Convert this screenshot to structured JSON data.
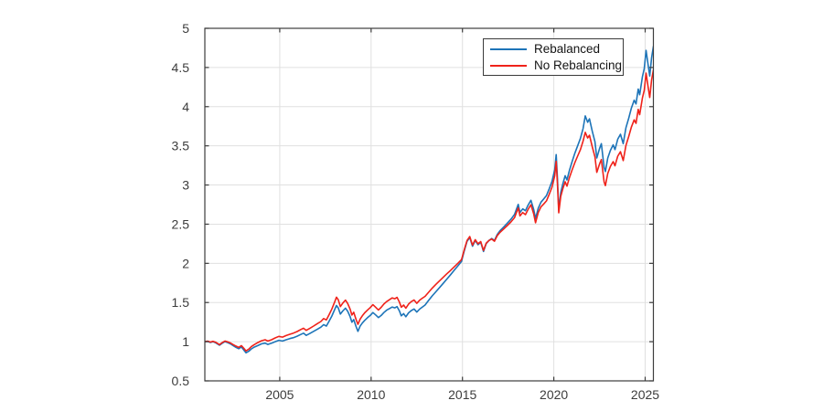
{
  "figure": {
    "background": "#ffffff"
  },
  "chart_data": {
    "type": "line",
    "title": "",
    "xlabel": "",
    "ylabel": "",
    "grid": true,
    "xlim": [
      2000.9,
      2025.45
    ],
    "ylim": [
      0.5,
      5
    ],
    "x_ticks": [
      2005,
      2010,
      2015,
      2020,
      2025
    ],
    "x_tick_labels": [
      "2005",
      "2010",
      "2015",
      "2020",
      "2025"
    ],
    "y_ticks": [
      0.5,
      1,
      1.5,
      2,
      2.5,
      3,
      3.5,
      4,
      4.5,
      5
    ],
    "y_tick_labels": [
      "0.5",
      "1",
      "1.5",
      "2",
      "2.5",
      "3",
      "3.5",
      "4",
      "4.5",
      "5"
    ],
    "legend": {
      "position": "top-right",
      "entries": [
        "Rebalanced",
        "No Rebalancing"
      ]
    },
    "colors": {
      "axis": "#3c3c3c",
      "tick_label": "#3c3c3c",
      "grid": "#e0e0e0",
      "legend_border": "#3a3a3a",
      "rebalanced_blue": "#1d74b8",
      "no_rebalancing_red": "#ef221a"
    },
    "series": [
      {
        "name": "Rebalanced",
        "color": "#1d74b8",
        "value_index": 1
      },
      {
        "name": "No Rebalancing",
        "color": "#ef221a",
        "value_index": 2
      }
    ],
    "points": [
      [
        2000.9,
        1.0,
        1.0
      ],
      [
        2001.05,
        1.005,
        1.007
      ],
      [
        2001.2,
        0.99,
        0.995
      ],
      [
        2001.35,
        1.0,
        1.005
      ],
      [
        2001.5,
        0.985,
        0.992
      ],
      [
        2001.7,
        0.955,
        0.963
      ],
      [
        2001.85,
        0.98,
        0.988
      ],
      [
        2002.0,
        1.0,
        1.008
      ],
      [
        2002.15,
        0.988,
        0.998
      ],
      [
        2002.3,
        0.972,
        0.984
      ],
      [
        2002.45,
        0.95,
        0.963
      ],
      [
        2002.6,
        0.928,
        0.944
      ],
      [
        2002.75,
        0.91,
        0.928
      ],
      [
        2002.9,
        0.932,
        0.95
      ],
      [
        2003.05,
        0.888,
        0.91
      ],
      [
        2003.15,
        0.858,
        0.882
      ],
      [
        2003.3,
        0.878,
        0.905
      ],
      [
        2003.45,
        0.908,
        0.938
      ],
      [
        2003.6,
        0.93,
        0.962
      ],
      [
        2003.8,
        0.95,
        0.988
      ],
      [
        2004.0,
        0.972,
        1.012
      ],
      [
        2004.2,
        0.982,
        1.025
      ],
      [
        2004.35,
        0.965,
        1.008
      ],
      [
        2004.55,
        0.98,
        1.025
      ],
      [
        2004.75,
        1.0,
        1.048
      ],
      [
        2004.95,
        1.018,
        1.068
      ],
      [
        2005.15,
        1.008,
        1.058
      ],
      [
        2005.35,
        1.025,
        1.078
      ],
      [
        2005.55,
        1.04,
        1.095
      ],
      [
        2005.75,
        1.052,
        1.11
      ],
      [
        2005.95,
        1.07,
        1.13
      ],
      [
        2006.15,
        1.092,
        1.155
      ],
      [
        2006.3,
        1.108,
        1.172
      ],
      [
        2006.45,
        1.08,
        1.145
      ],
      [
        2006.65,
        1.105,
        1.172
      ],
      [
        2006.85,
        1.132,
        1.2
      ],
      [
        2007.05,
        1.158,
        1.23
      ],
      [
        2007.25,
        1.185,
        1.258
      ],
      [
        2007.4,
        1.218,
        1.295
      ],
      [
        2007.55,
        1.2,
        1.278
      ],
      [
        2007.7,
        1.262,
        1.345
      ],
      [
        2007.85,
        1.328,
        1.418
      ],
      [
        2008.0,
        1.408,
        1.505
      ],
      [
        2008.1,
        1.462,
        1.568
      ],
      [
        2008.2,
        1.432,
        1.535
      ],
      [
        2008.32,
        1.352,
        1.448
      ],
      [
        2008.45,
        1.392,
        1.492
      ],
      [
        2008.6,
        1.428,
        1.53
      ],
      [
        2008.72,
        1.388,
        1.488
      ],
      [
        2008.85,
        1.322,
        1.418
      ],
      [
        2008.95,
        1.248,
        1.34
      ],
      [
        2009.05,
        1.282,
        1.375
      ],
      [
        2009.18,
        1.192,
        1.282
      ],
      [
        2009.28,
        1.132,
        1.222
      ],
      [
        2009.4,
        1.198,
        1.288
      ],
      [
        2009.52,
        1.238,
        1.33
      ],
      [
        2009.65,
        1.272,
        1.368
      ],
      [
        2009.8,
        1.305,
        1.402
      ],
      [
        2009.95,
        1.335,
        1.435
      ],
      [
        2010.1,
        1.372,
        1.472
      ],
      [
        2010.25,
        1.342,
        1.44
      ],
      [
        2010.4,
        1.308,
        1.405
      ],
      [
        2010.55,
        1.335,
        1.438
      ],
      [
        2010.7,
        1.372,
        1.48
      ],
      [
        2010.85,
        1.402,
        1.512
      ],
      [
        2011.0,
        1.422,
        1.535
      ],
      [
        2011.15,
        1.442,
        1.558
      ],
      [
        2011.3,
        1.432,
        1.548
      ],
      [
        2011.42,
        1.448,
        1.565
      ],
      [
        2011.55,
        1.392,
        1.505
      ],
      [
        2011.65,
        1.33,
        1.44
      ],
      [
        2011.78,
        1.358,
        1.468
      ],
      [
        2011.9,
        1.318,
        1.428
      ],
      [
        2012.05,
        1.368,
        1.48
      ],
      [
        2012.2,
        1.398,
        1.512
      ],
      [
        2012.35,
        1.418,
        1.532
      ],
      [
        2012.5,
        1.378,
        1.49
      ],
      [
        2012.65,
        1.415,
        1.528
      ],
      [
        2012.8,
        1.442,
        1.555
      ],
      [
        2012.95,
        1.468,
        1.578
      ],
      [
        2013.15,
        1.528,
        1.632
      ],
      [
        2013.35,
        1.585,
        1.685
      ],
      [
        2013.55,
        1.638,
        1.732
      ],
      [
        2013.75,
        1.692,
        1.778
      ],
      [
        2013.95,
        1.745,
        1.822
      ],
      [
        2014.15,
        1.8,
        1.868
      ],
      [
        2014.35,
        1.855,
        1.91
      ],
      [
        2014.55,
        1.912,
        1.955
      ],
      [
        2014.75,
        1.968,
        2.0
      ],
      [
        2014.95,
        2.025,
        2.048
      ],
      [
        2015.1,
        2.16,
        2.175
      ],
      [
        2015.25,
        2.28,
        2.292
      ],
      [
        2015.4,
        2.33,
        2.342
      ],
      [
        2015.55,
        2.218,
        2.232
      ],
      [
        2015.7,
        2.292,
        2.302
      ],
      [
        2015.85,
        2.238,
        2.25
      ],
      [
        2016.0,
        2.268,
        2.278
      ],
      [
        2016.15,
        2.152,
        2.165
      ],
      [
        2016.3,
        2.252,
        2.258
      ],
      [
        2016.45,
        2.292,
        2.292
      ],
      [
        2016.6,
        2.318,
        2.31
      ],
      [
        2016.75,
        2.292,
        2.282
      ],
      [
        2016.9,
        2.368,
        2.352
      ],
      [
        2017.05,
        2.415,
        2.395
      ],
      [
        2017.25,
        2.462,
        2.438
      ],
      [
        2017.45,
        2.512,
        2.482
      ],
      [
        2017.65,
        2.562,
        2.528
      ],
      [
        2017.85,
        2.625,
        2.585
      ],
      [
        2018.05,
        2.752,
        2.708
      ],
      [
        2018.15,
        2.648,
        2.605
      ],
      [
        2018.3,
        2.695,
        2.648
      ],
      [
        2018.45,
        2.672,
        2.622
      ],
      [
        2018.6,
        2.745,
        2.692
      ],
      [
        2018.75,
        2.805,
        2.748
      ],
      [
        2018.9,
        2.688,
        2.632
      ],
      [
        2019.0,
        2.572,
        2.518
      ],
      [
        2019.15,
        2.705,
        2.648
      ],
      [
        2019.3,
        2.782,
        2.722
      ],
      [
        2019.45,
        2.822,
        2.758
      ],
      [
        2019.6,
        2.865,
        2.798
      ],
      [
        2019.75,
        2.952,
        2.882
      ],
      [
        2019.9,
        3.045,
        2.972
      ],
      [
        2020.05,
        3.195,
        3.118
      ],
      [
        2020.13,
        3.388,
        3.302
      ],
      [
        2020.2,
        3.08,
        3.01
      ],
      [
        2020.27,
        2.68,
        2.645
      ],
      [
        2020.38,
        2.905,
        2.855
      ],
      [
        2020.5,
        3.02,
        2.958
      ],
      [
        2020.62,
        3.118,
        3.042
      ],
      [
        2020.72,
        3.065,
        2.985
      ],
      [
        2020.85,
        3.182,
        3.092
      ],
      [
        2021.0,
        3.298,
        3.192
      ],
      [
        2021.15,
        3.405,
        3.285
      ],
      [
        2021.3,
        3.498,
        3.368
      ],
      [
        2021.45,
        3.592,
        3.448
      ],
      [
        2021.6,
        3.72,
        3.56
      ],
      [
        2021.72,
        3.882,
        3.672
      ],
      [
        2021.85,
        3.8,
        3.6
      ],
      [
        2021.95,
        3.845,
        3.635
      ],
      [
        2022.1,
        3.69,
        3.49
      ],
      [
        2022.25,
        3.552,
        3.358
      ],
      [
        2022.35,
        3.345,
        3.162
      ],
      [
        2022.5,
        3.465,
        3.268
      ],
      [
        2022.6,
        3.528,
        3.325
      ],
      [
        2022.75,
        3.225,
        3.04
      ],
      [
        2022.82,
        3.172,
        2.992
      ],
      [
        2022.95,
        3.345,
        3.148
      ],
      [
        2023.1,
        3.442,
        3.238
      ],
      [
        2023.25,
        3.512,
        3.298
      ],
      [
        2023.35,
        3.452,
        3.245
      ],
      [
        2023.5,
        3.585,
        3.368
      ],
      [
        2023.65,
        3.648,
        3.425
      ],
      [
        2023.8,
        3.528,
        3.312
      ],
      [
        2023.95,
        3.732,
        3.505
      ],
      [
        2024.1,
        3.852,
        3.618
      ],
      [
        2024.25,
        3.985,
        3.742
      ],
      [
        2024.4,
        4.082,
        3.832
      ],
      [
        2024.5,
        4.035,
        3.788
      ],
      [
        2024.62,
        4.225,
        3.965
      ],
      [
        2024.7,
        4.152,
        3.898
      ],
      [
        2024.85,
        4.382,
        4.112
      ],
      [
        2024.95,
        4.485,
        4.208
      ],
      [
        2025.05,
        4.718,
        4.428
      ],
      [
        2025.15,
        4.552,
        4.268
      ],
      [
        2025.25,
        4.392,
        4.118
      ],
      [
        2025.35,
        4.622,
        4.338
      ],
      [
        2025.45,
        4.768,
        4.468
      ]
    ]
  }
}
